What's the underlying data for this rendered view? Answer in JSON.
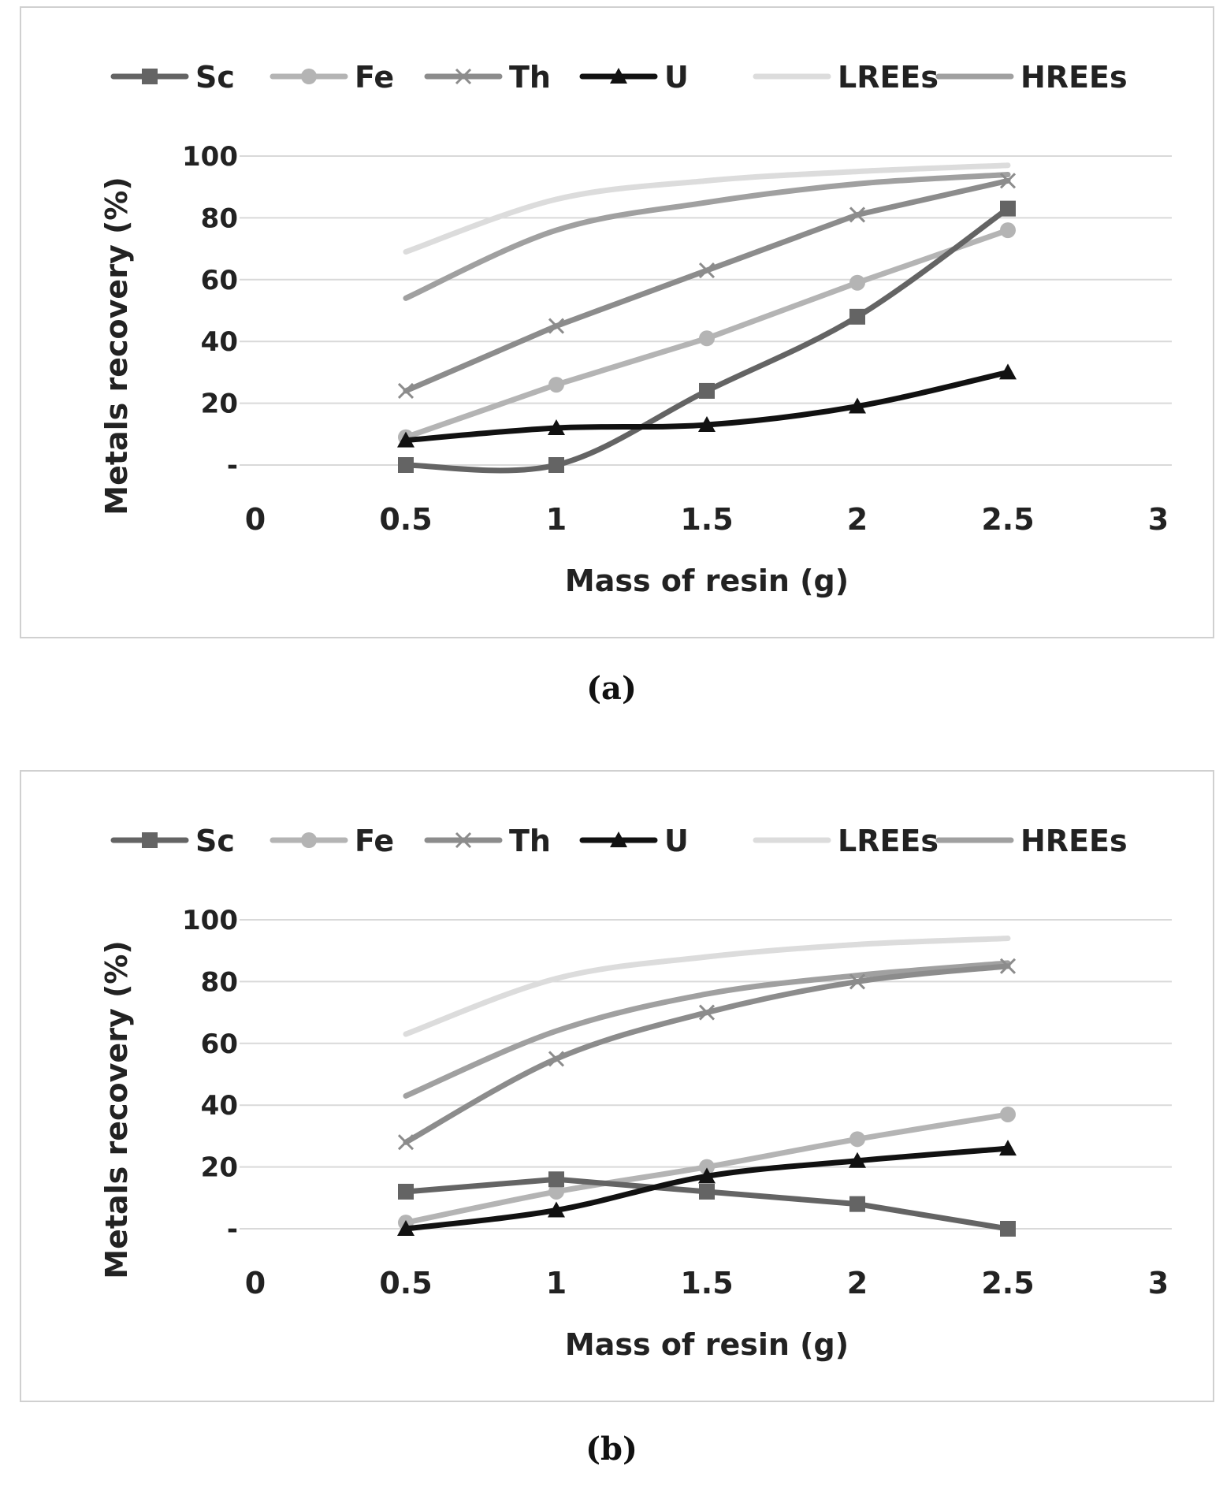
{
  "chart_data": [
    {
      "type": "line",
      "caption": "(a)",
      "xlabel": "Mass of resin (g)",
      "ylabel": "Metals recovery (%)",
      "xlim": [
        0,
        3
      ],
      "ylim": [
        0,
        100
      ],
      "x_ticks": [
        "0",
        "0.5",
        "1",
        "1.5",
        "2",
        "2.5",
        "3"
      ],
      "y_ticks": [
        "-",
        "20",
        "40",
        "60",
        "80",
        "100"
      ],
      "grid": true,
      "legend_position": "top",
      "x": [
        0.5,
        1,
        1.5,
        2,
        2.5
      ],
      "series": [
        {
          "name": "Sc",
          "values": [
            0,
            0,
            24,
            48,
            83
          ],
          "color": "#646464",
          "marker": "square",
          "smooth": true
        },
        {
          "name": "Fe",
          "values": [
            9,
            26,
            41,
            59,
            76
          ],
          "color": "#b4b4b4",
          "marker": "circle",
          "smooth": false
        },
        {
          "name": "Th",
          "values": [
            24,
            45,
            63,
            81,
            92
          ],
          "color": "#8c8c8c",
          "marker": "x",
          "smooth": false
        },
        {
          "name": "U",
          "values": [
            8,
            12,
            13,
            19,
            30
          ],
          "color": "#111111",
          "marker": "triangle",
          "smooth": true
        },
        {
          "name": "LREEs",
          "values": [
            69,
            86,
            92,
            95,
            97
          ],
          "color": "#dcdcdc",
          "marker": "none",
          "smooth": true
        },
        {
          "name": "HREEs",
          "values": [
            54,
            76,
            85,
            91,
            94
          ],
          "color": "#a0a0a0",
          "marker": "none",
          "smooth": true
        }
      ]
    },
    {
      "type": "line",
      "caption": "(b)",
      "xlabel": "Mass of resin (g)",
      "ylabel": "Metals recovery (%)",
      "xlim": [
        0,
        3
      ],
      "ylim": [
        0,
        100
      ],
      "x_ticks": [
        "0",
        "0.5",
        "1",
        "1.5",
        "2",
        "2.5",
        "3"
      ],
      "y_ticks": [
        "-",
        "20",
        "40",
        "60",
        "80",
        "100"
      ],
      "grid": true,
      "legend_position": "top",
      "x": [
        0.5,
        1,
        1.5,
        2,
        2.5
      ],
      "series": [
        {
          "name": "Sc",
          "values": [
            12,
            16,
            12,
            8,
            0
          ],
          "color": "#646464",
          "marker": "square",
          "smooth": false
        },
        {
          "name": "Fe",
          "values": [
            2,
            12,
            20,
            29,
            37
          ],
          "color": "#b4b4b4",
          "marker": "circle",
          "smooth": true
        },
        {
          "name": "Th",
          "values": [
            28,
            55,
            70,
            80,
            85
          ],
          "color": "#8c8c8c",
          "marker": "x",
          "smooth": true
        },
        {
          "name": "U",
          "values": [
            0,
            6,
            17,
            22,
            26
          ],
          "color": "#111111",
          "marker": "triangle",
          "smooth": true
        },
        {
          "name": "LREEs",
          "values": [
            63,
            81,
            88,
            92,
            94
          ],
          "color": "#dcdcdc",
          "marker": "none",
          "smooth": true
        },
        {
          "name": "HREEs",
          "values": [
            43,
            64,
            76,
            82,
            86
          ],
          "color": "#a0a0a0",
          "marker": "none",
          "smooth": true
        }
      ]
    }
  ]
}
